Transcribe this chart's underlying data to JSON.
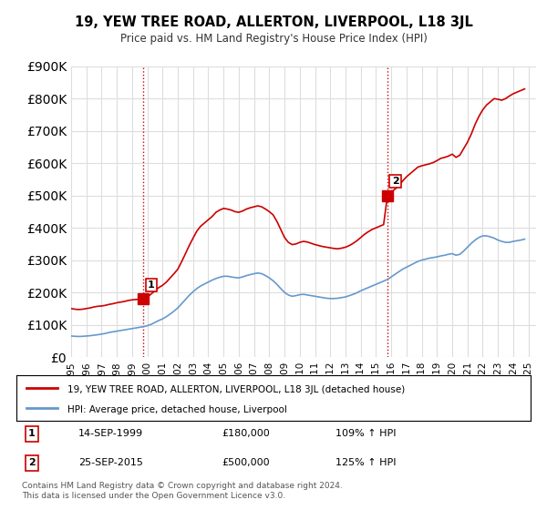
{
  "title": "19, YEW TREE ROAD, ALLERTON, LIVERPOOL, L18 3JL",
  "subtitle": "Price paid vs. HM Land Registry's House Price Index (HPI)",
  "ylabel_values": [
    "£0",
    "£100K",
    "£200K",
    "£300K",
    "£400K",
    "£500K",
    "£600K",
    "£700K",
    "£800K",
    "£900K"
  ],
  "ylim": [
    0,
    900000
  ],
  "yticks": [
    0,
    100000,
    200000,
    300000,
    400000,
    500000,
    600000,
    700000,
    800000,
    900000
  ],
  "xlim_start": 1995.0,
  "xlim_end": 2025.5,
  "red_line_color": "#cc0000",
  "blue_line_color": "#6699cc",
  "sale1_x": 1999.71,
  "sale1_y": 180000,
  "sale1_label": "1",
  "sale1_date": "14-SEP-1999",
  "sale1_price": "£180,000",
  "sale1_hpi": "109% ↑ HPI",
  "sale2_x": 2015.73,
  "sale2_y": 500000,
  "sale2_label": "2",
  "sale2_date": "25-SEP-2015",
  "sale2_price": "£500,000",
  "sale2_hpi": "125% ↑ HPI",
  "legend_line1": "19, YEW TREE ROAD, ALLERTON, LIVERPOOL, L18 3JL (detached house)",
  "legend_line2": "HPI: Average price, detached house, Liverpool",
  "footer": "Contains HM Land Registry data © Crown copyright and database right 2024.\nThis data is licensed under the Open Government Licence v3.0.",
  "vline_color": "#cc0000",
  "vline_style": ":",
  "background_color": "#ffffff",
  "grid_color": "#dddddd",
  "red_hpi_data": {
    "years": [
      1995.0,
      1995.25,
      1995.5,
      1995.75,
      1996.0,
      1996.25,
      1996.5,
      1996.75,
      1997.0,
      1997.25,
      1997.5,
      1997.75,
      1998.0,
      1998.25,
      1998.5,
      1998.75,
      1999.0,
      1999.25,
      1999.5,
      1999.75,
      2000.0,
      2000.25,
      2000.5,
      2000.75,
      2001.0,
      2001.25,
      2001.5,
      2001.75,
      2002.0,
      2002.25,
      2002.5,
      2002.75,
      2003.0,
      2003.25,
      2003.5,
      2003.75,
      2004.0,
      2004.25,
      2004.5,
      2004.75,
      2005.0,
      2005.25,
      2005.5,
      2005.75,
      2006.0,
      2006.25,
      2006.5,
      2006.75,
      2007.0,
      2007.25,
      2007.5,
      2007.75,
      2008.0,
      2008.25,
      2008.5,
      2008.75,
      2009.0,
      2009.25,
      2009.5,
      2009.75,
      2010.0,
      2010.25,
      2010.5,
      2010.75,
      2011.0,
      2011.25,
      2011.5,
      2011.75,
      2012.0,
      2012.25,
      2012.5,
      2012.75,
      2013.0,
      2013.25,
      2013.5,
      2013.75,
      2014.0,
      2014.25,
      2014.5,
      2014.75,
      2015.0,
      2015.25,
      2015.5,
      2015.75,
      2016.0,
      2016.25,
      2016.5,
      2016.75,
      2017.0,
      2017.25,
      2017.5,
      2017.75,
      2018.0,
      2018.25,
      2018.5,
      2018.75,
      2019.0,
      2019.25,
      2019.5,
      2019.75,
      2020.0,
      2020.25,
      2020.5,
      2020.75,
      2021.0,
      2021.25,
      2021.5,
      2021.75,
      2022.0,
      2022.25,
      2022.5,
      2022.75,
      2023.0,
      2023.25,
      2023.5,
      2023.75,
      2024.0,
      2024.25,
      2024.5,
      2024.75
    ],
    "values": [
      150000,
      148000,
      147000,
      148000,
      150000,
      152000,
      155000,
      157000,
      158000,
      160000,
      163000,
      165000,
      168000,
      170000,
      172000,
      175000,
      177000,
      178000,
      179000,
      180000,
      185000,
      195000,
      205000,
      215000,
      222000,
      232000,
      245000,
      258000,
      272000,
      295000,
      320000,
      345000,
      368000,
      390000,
      405000,
      415000,
      425000,
      435000,
      448000,
      455000,
      460000,
      458000,
      455000,
      450000,
      448000,
      452000,
      458000,
      462000,
      465000,
      468000,
      465000,
      458000,
      450000,
      440000,
      420000,
      395000,
      370000,
      355000,
      348000,
      350000,
      355000,
      358000,
      356000,
      352000,
      348000,
      345000,
      342000,
      340000,
      338000,
      336000,
      335000,
      337000,
      340000,
      345000,
      352000,
      360000,
      370000,
      380000,
      388000,
      395000,
      400000,
      405000,
      410000,
      500000,
      510000,
      520000,
      530000,
      545000,
      558000,
      568000,
      578000,
      588000,
      592000,
      595000,
      598000,
      602000,
      608000,
      615000,
      618000,
      622000,
      628000,
      618000,
      625000,
      645000,
      665000,
      690000,
      720000,
      745000,
      765000,
      780000,
      790000,
      800000,
      798000,
      795000,
      800000,
      808000,
      815000,
      820000,
      825000,
      830000
    ]
  },
  "blue_hpi_data": {
    "years": [
      1995.0,
      1995.25,
      1995.5,
      1995.75,
      1996.0,
      1996.25,
      1996.5,
      1996.75,
      1997.0,
      1997.25,
      1997.5,
      1997.75,
      1998.0,
      1998.25,
      1998.5,
      1998.75,
      1999.0,
      1999.25,
      1999.5,
      1999.75,
      2000.0,
      2000.25,
      2000.5,
      2000.75,
      2001.0,
      2001.25,
      2001.5,
      2001.75,
      2002.0,
      2002.25,
      2002.5,
      2002.75,
      2003.0,
      2003.25,
      2003.5,
      2003.75,
      2004.0,
      2004.25,
      2004.5,
      2004.75,
      2005.0,
      2005.25,
      2005.5,
      2005.75,
      2006.0,
      2006.25,
      2006.5,
      2006.75,
      2007.0,
      2007.25,
      2007.5,
      2007.75,
      2008.0,
      2008.25,
      2008.5,
      2008.75,
      2009.0,
      2009.25,
      2009.5,
      2009.75,
      2010.0,
      2010.25,
      2010.5,
      2010.75,
      2011.0,
      2011.25,
      2011.5,
      2011.75,
      2012.0,
      2012.25,
      2012.5,
      2012.75,
      2013.0,
      2013.25,
      2013.5,
      2013.75,
      2014.0,
      2014.25,
      2014.5,
      2014.75,
      2015.0,
      2015.25,
      2015.5,
      2015.75,
      2016.0,
      2016.25,
      2016.5,
      2016.75,
      2017.0,
      2017.25,
      2017.5,
      2017.75,
      2018.0,
      2018.25,
      2018.5,
      2018.75,
      2019.0,
      2019.25,
      2019.5,
      2019.75,
      2020.0,
      2020.25,
      2020.5,
      2020.75,
      2021.0,
      2021.25,
      2021.5,
      2021.75,
      2022.0,
      2022.25,
      2022.5,
      2022.75,
      2023.0,
      2023.25,
      2023.5,
      2023.75,
      2024.0,
      2024.25,
      2024.5,
      2024.75
    ],
    "values": [
      65000,
      64000,
      63500,
      64000,
      65000,
      66000,
      67500,
      69000,
      71000,
      73000,
      76000,
      78000,
      80000,
      82000,
      84000,
      86000,
      88000,
      90000,
      92000,
      94000,
      97000,
      101000,
      107000,
      113000,
      118000,
      125000,
      133000,
      142000,
      152000,
      165000,
      178000,
      191000,
      202000,
      212000,
      220000,
      226000,
      232000,
      238000,
      243000,
      247000,
      250000,
      250000,
      248000,
      246000,
      245000,
      248000,
      252000,
      255000,
      258000,
      260000,
      258000,
      252000,
      245000,
      236000,
      225000,
      212000,
      200000,
      192000,
      188000,
      190000,
      193000,
      194000,
      192000,
      190000,
      188000,
      186000,
      184000,
      182000,
      181000,
      181000,
      182000,
      184000,
      186000,
      190000,
      194000,
      199000,
      205000,
      210000,
      215000,
      220000,
      225000,
      230000,
      235000,
      240000,
      248000,
      256000,
      264000,
      272000,
      278000,
      284000,
      290000,
      296000,
      300000,
      303000,
      306000,
      308000,
      310000,
      313000,
      315000,
      318000,
      320000,
      315000,
      318000,
      328000,
      340000,
      352000,
      362000,
      370000,
      375000,
      375000,
      372000,
      368000,
      362000,
      358000,
      355000,
      355000,
      358000,
      360000,
      362000,
      365000
    ]
  }
}
